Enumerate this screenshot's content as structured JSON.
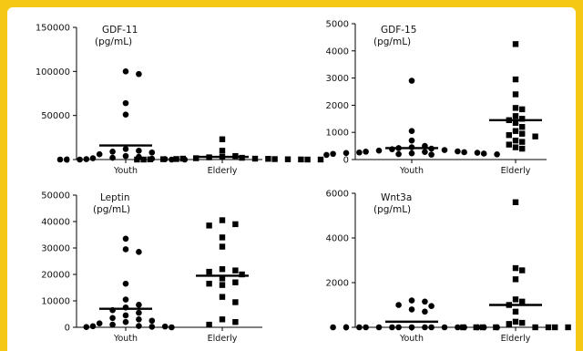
{
  "chart_data": [
    {
      "type": "scatter",
      "title": "GDF-11",
      "unit": "(pg/mL)",
      "categories": [
        "Youth",
        "Elderly"
      ],
      "ylim": [
        0,
        150000
      ],
      "yticks": [
        0,
        50000,
        100000,
        150000
      ],
      "ytick_labels": [
        "0",
        "50000",
        "100000",
        "150000"
      ],
      "grid": false,
      "series": [
        {
          "category": "Youth",
          "marker": "circle",
          "values": [
            100000,
            97000,
            64000,
            51000,
            12000,
            10000,
            9000,
            8000,
            6000,
            4000,
            3000,
            2000,
            1500,
            1000,
            500,
            500,
            0,
            0,
            0,
            0,
            0
          ],
          "median": 16000
        },
        {
          "category": "Elderly",
          "marker": "square",
          "values": [
            23000,
            10000,
            4000,
            3000,
            2500,
            2000,
            1500,
            1000,
            1000,
            800,
            600,
            500,
            400,
            300,
            200,
            100,
            0,
            0,
            0,
            0
          ],
          "median": 3000
        }
      ]
    },
    {
      "type": "scatter",
      "title": "GDF-15",
      "unit": "(pg/mL)",
      "categories": [
        "Youth",
        "Elderly"
      ],
      "ylim": [
        0,
        5000
      ],
      "yticks": [
        0,
        1000,
        2000,
        3000,
        4000,
        5000
      ],
      "ytick_labels": [
        "0",
        "1000",
        "2000",
        "3000",
        "4000",
        "5000"
      ],
      "grid": false,
      "series": [
        {
          "category": "Youth",
          "marker": "circle",
          "values": [
            2900,
            1050,
            700,
            500,
            450,
            420,
            400,
            380,
            350,
            330,
            300,
            290,
            280,
            270,
            260,
            250,
            240,
            230,
            220,
            210,
            200,
            190,
            180,
            170
          ],
          "median": 420
        },
        {
          "category": "Elderly",
          "marker": "square",
          "values": [
            4250,
            2950,
            2400,
            1900,
            1850,
            1600,
            1500,
            1450,
            1350,
            1200,
            1050,
            950,
            900,
            850,
            700,
            650,
            550,
            450,
            400
          ],
          "median": 1450
        }
      ]
    },
    {
      "type": "scatter",
      "title": "Leptin",
      "unit": "(pg/mL)",
      "categories": [
        "Youth",
        "Elderly"
      ],
      "ylim": [
        0,
        50000
      ],
      "yticks": [
        0,
        10000,
        20000,
        30000,
        40000,
        50000
      ],
      "ytick_labels": [
        "0",
        "10000",
        "20000",
        "30000",
        "40000",
        "50000"
      ],
      "grid": false,
      "series": [
        {
          "category": "Youth",
          "marker": "circle",
          "values": [
            33500,
            29500,
            28500,
            16500,
            10500,
            8500,
            7500,
            6500,
            5500,
            4500,
            3500,
            3000,
            2500,
            2000,
            1500,
            1000,
            500,
            400,
            300,
            200,
            100,
            0
          ],
          "median": 7000
        },
        {
          "category": "Elderly",
          "marker": "square",
          "values": [
            40500,
            39000,
            38500,
            34000,
            30500,
            22000,
            21500,
            21000,
            20000,
            18500,
            17000,
            16500,
            16000,
            11500,
            9500,
            3000,
            2000,
            1000
          ],
          "median": 19500
        }
      ]
    },
    {
      "type": "scatter",
      "title": "Wnt3a",
      "unit": "(pg/mL)",
      "categories": [
        "Youth",
        "Elderly"
      ],
      "ylim": [
        0,
        6000
      ],
      "yticks": [
        0,
        2000,
        4000,
        6000
      ],
      "ytick_labels": [
        "0",
        "2000",
        "4000",
        "6000"
      ],
      "grid": false,
      "series": [
        {
          "category": "Youth",
          "marker": "circle",
          "values": [
            1200,
            1150,
            1000,
            950,
            800,
            700,
            0,
            0,
            0,
            0,
            0,
            0,
            0,
            0,
            0,
            0,
            0,
            0,
            0,
            0,
            0,
            0
          ],
          "median": 250
        },
        {
          "category": "Elderly",
          "marker": "square",
          "values": [
            5600,
            2650,
            2550,
            2150,
            1250,
            1150,
            1000,
            700,
            250,
            200,
            150,
            0,
            0,
            0,
            0,
            0,
            0,
            0,
            0
          ],
          "median": 1000
        }
      ]
    }
  ]
}
